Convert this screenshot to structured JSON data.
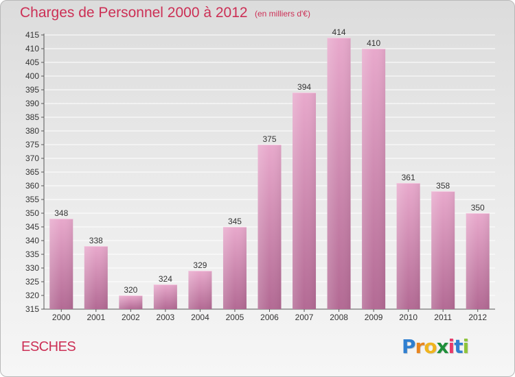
{
  "title": "Charges de Personnel 2000 à 2012",
  "subtitle": "(en milliers d'€)",
  "commune": "ESCHES",
  "logo": {
    "letters": [
      "P",
      "r",
      "o",
      "x",
      "i",
      "t",
      "i"
    ],
    "colors": [
      "#2f7fd0",
      "#e8851f",
      "#f0b41f",
      "#1f8f3a",
      "#e83a6a",
      "#2f7fd0",
      "#8ec43a"
    ]
  },
  "colors": {
    "title": "#cc2f55",
    "bar_top": "#e8a9cc",
    "bar_bottom": "#b36a94",
    "grid": "#ffffff"
  },
  "chart_data": {
    "type": "bar",
    "categories": [
      "2000",
      "2001",
      "2002",
      "2003",
      "2004",
      "2005",
      "2006",
      "2007",
      "2008",
      "2009",
      "2010",
      "2011",
      "2012"
    ],
    "values": [
      348,
      338,
      320,
      324,
      329,
      345,
      375,
      394,
      414,
      410,
      361,
      358,
      350
    ],
    "ylim": [
      315,
      415
    ],
    "ytick_step": 5,
    "grid": true,
    "xlabel": "",
    "ylabel": ""
  }
}
